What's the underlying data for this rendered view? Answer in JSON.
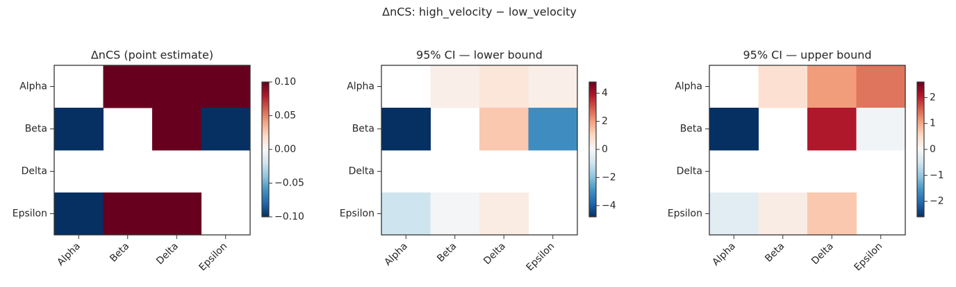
{
  "title": "ΔnCS: high_velocity − low_velocity",
  "chart_data": [
    {
      "type": "heatmap",
      "title": "ΔnCS (point estimate)",
      "xcategories": [
        "Alpha",
        "Beta",
        "Delta",
        "Epsilon"
      ],
      "ycategories": [
        "Alpha",
        "Beta",
        "Delta",
        "Epsilon"
      ],
      "values": [
        [
          null,
          0.1,
          0.1,
          0.1
        ],
        [
          -0.1,
          null,
          0.1,
          -0.1
        ],
        [
          null,
          null,
          null,
          null
        ],
        [
          -0.1,
          0.1,
          0.1,
          null
        ]
      ],
      "vlim": [
        -0.1,
        0.1
      ],
      "cticks": [
        {
          "value": 0.1,
          "label": "0.10"
        },
        {
          "value": 0.05,
          "label": "0.05"
        },
        {
          "value": 0,
          "label": "0.00"
        },
        {
          "value": -0.05,
          "label": "−0.05"
        },
        {
          "value": -0.1,
          "label": "−0.10"
        }
      ],
      "colormap": [
        "#053061",
        "#2166ac",
        "#4393c3",
        "#92c5de",
        "#d1e5f0",
        "#f7f7f7",
        "#fddbc7",
        "#f4a582",
        "#d6604d",
        "#b2182b",
        "#67001f"
      ]
    },
    {
      "type": "heatmap",
      "title": "95% CI — lower bound",
      "xcategories": [
        "Alpha",
        "Beta",
        "Delta",
        "Epsilon"
      ],
      "ycategories": [
        "Alpha",
        "Beta",
        "Delta",
        "Epsilon"
      ],
      "values": [
        [
          null,
          0.3,
          0.6,
          0.3
        ],
        [
          -4.8,
          null,
          1.3,
          -3.0
        ],
        [
          null,
          null,
          null,
          null
        ],
        [
          -1.0,
          -0.1,
          0.4,
          null
        ]
      ],
      "vlim": [
        -4.8,
        4.8
      ],
      "cticks": [
        4,
        2,
        0,
        {
          "value": -2,
          "label": "−2"
        },
        {
          "value": -4,
          "label": "−4"
        }
      ],
      "colormap": [
        "#053061",
        "#2166ac",
        "#4393c3",
        "#92c5de",
        "#d1e5f0",
        "#f7f7f7",
        "#fddbc7",
        "#f4a582",
        "#d6604d",
        "#b2182b",
        "#67001f"
      ]
    },
    {
      "type": "heatmap",
      "title": "95% CI — upper bound",
      "xcategories": [
        "Alpha",
        "Beta",
        "Delta",
        "Epsilon"
      ],
      "ycategories": [
        "Alpha",
        "Beta",
        "Delta",
        "Epsilon"
      ],
      "values": [
        [
          null,
          0.4,
          1.1,
          1.4
        ],
        [
          -2.6,
          null,
          2.1,
          -0.1
        ],
        [
          null,
          null,
          null,
          null
        ],
        [
          -0.3,
          0.2,
          0.7,
          null
        ]
      ],
      "vlim": [
        -2.6,
        2.6
      ],
      "cticks": [
        2,
        1,
        0,
        {
          "value": -1,
          "label": "−1"
        },
        {
          "value": -2,
          "label": "−2"
        }
      ],
      "colormap": [
        "#053061",
        "#2166ac",
        "#4393c3",
        "#92c5de",
        "#d1e5f0",
        "#f7f7f7",
        "#fddbc7",
        "#f4a582",
        "#d6604d",
        "#b2182b",
        "#67001f"
      ]
    }
  ]
}
